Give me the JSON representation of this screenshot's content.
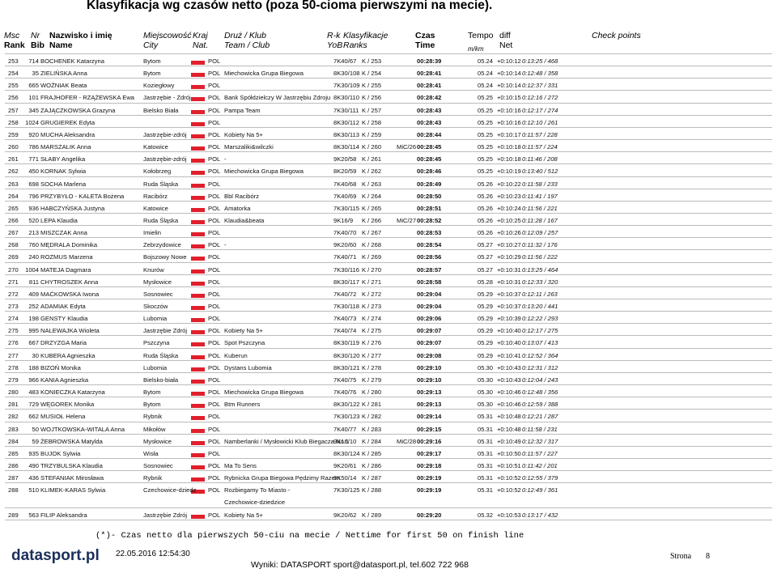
{
  "header": {
    "title": "Klasyfikacja wg czasów netto (poza 50-cioma pierwszymi na mecie).",
    "columns": [
      [
        "Msc",
        "Rank"
      ],
      [
        "Nr",
        "Bib"
      ],
      [
        "Nazwisko i imię",
        "Name"
      ],
      [
        "Miejscowość",
        "City"
      ],
      [
        "Kraj",
        "Nat."
      ],
      [
        "Druż / Klub",
        "Team / Club"
      ],
      [
        "R-k",
        "YoB"
      ],
      [
        "Klasyfikacje",
        "Ranks"
      ],
      [
        "Czas",
        "Time"
      ],
      [
        "Tempo",
        "m/km"
      ],
      [
        "diff",
        "Net"
      ],
      [
        "Check points"
      ]
    ]
  },
  "table": {
    "rows": [
      [
        "253",
        "714",
        "BOCHENEK Katarzyna",
        "Bytom",
        "POL",
        null,
        "7K40/67",
        "K / 253",
        null,
        "00:28:39",
        "05.24",
        "+0:10:12",
        "0:13:25 / 468"
      ],
      [
        "254",
        "35",
        "ZIELIŃSKA Anna",
        "Bytom",
        "POL",
        "Miechowicka Grupa Biegowa",
        "8K30/108",
        "K / 254",
        null,
        "00:28:41",
        "05.24",
        "+0:10:14",
        "0:12:48 / 358"
      ],
      [
        "255",
        "665",
        "WOŹNIAK Beata",
        "Koziegłowy",
        "POL",
        null,
        "7K30/109",
        "K / 255",
        null,
        "00:28:41",
        "05.24",
        "+0:10:14",
        "0:12:37 / 331"
      ],
      [
        "256",
        "101",
        "FRAJHOFER - RZĄŻEWSKA Ewa",
        "Jastrzębie - Zdrój",
        "POL",
        "Bank Spółdzielczy W Jastrzębiu Zdroju",
        "8K30/110",
        "K / 256",
        null,
        "00:28:42",
        "05.25",
        "+0:10:15",
        "0:12:16 / 272"
      ],
      [
        "257",
        "345",
        "ZAJĄCZKOWSKA Grazyna",
        "Bielsko Biała",
        "POL",
        "Pampa Team",
        "7K30/111",
        "K / 257",
        null,
        "00:28:43",
        "05.25",
        "+0:10:16",
        "0:12:17 / 274"
      ],
      [
        "258",
        "1024",
        "GRUGIEREK Edyta",
        null,
        "POL",
        null,
        "8K30/112",
        "K / 258",
        null,
        "00:28:43",
        "05.25",
        "+0:10:16",
        "0:12:10 / 261"
      ],
      [
        "259",
        "920",
        "MUCHA Aleksandra",
        "Jastrzębie-zdrój",
        "POL",
        "Kobiety Na 5+",
        "8K30/113",
        "K / 259",
        null,
        "00:28:44",
        "05.25",
        "+0:10:17",
        "0:11:57 / 228"
      ],
      [
        "260",
        "786",
        "MARSZALIK Anna",
        "Katowice",
        "POL",
        "Marszaliki&wilczki",
        "8K30/114",
        "K / 260",
        "MiC/26",
        "00:28:45",
        "05.25",
        "+0:10:18",
        "0:11:57 / 224"
      ],
      [
        "261",
        "771",
        "SŁABY Angelika",
        "Jastrzębie-zdrój",
        "POL",
        "-",
        "9K20/58",
        "K / 261",
        null,
        "00:28:45",
        "05.25",
        "+0:10:18",
        "0:11:46 / 208"
      ],
      [
        "262",
        "450",
        "KORNAK Sylwia",
        "Kołobrzeg",
        "POL",
        "Miechowicka Grupa Biegowa",
        "8K20/59",
        "K / 262",
        null,
        "00:28:46",
        "05.25",
        "+0:10:19",
        "0:13:40 / 512"
      ],
      [
        "263",
        "698",
        "SOCHA Marlena",
        "Ruda Śląska",
        "POL",
        null,
        "7K40/68",
        "K / 263",
        null,
        "00:28:49",
        "05.26",
        "+0:10:22",
        "0:11:58 / 233"
      ],
      [
        "264",
        "796",
        "PRZYBYŁO - KALETA Bożena",
        "Racibórz",
        "POL",
        "Bbl Racibórz",
        "7K40/69",
        "K / 264",
        null,
        "00:28:50",
        "05.26",
        "+0:10:23",
        "0:11:41 / 197"
      ],
      [
        "265",
        "936",
        "HABCZYŃSKA Justyna",
        "Katowice",
        "POL",
        "Amatorka",
        "7K30/115",
        "K / 265",
        null,
        "00:28:51",
        "05.26",
        "+0:10:24",
        "0:11:56 / 221"
      ],
      [
        "266",
        "520",
        "LEPA Klaudia",
        "Ruda Śląska",
        "POL",
        "Klaudia&beata",
        "9K16/9",
        "K / 266",
        "MiC/27",
        "00:28:52",
        "05.26",
        "+0:10:25",
        "0:11:28 / 167"
      ],
      [
        "267",
        "213",
        "MISZCZAK Anna",
        "Imielin",
        "POL",
        null,
        "7K40/70",
        "K / 267",
        null,
        "00:28:53",
        "05.26",
        "+0:10:26",
        "0:12:09 / 257"
      ],
      [
        "268",
        "760",
        "MĘDRALA Dominika",
        "Zebrzydowice",
        "POL",
        "-",
        "9K20/60",
        "K / 268",
        null,
        "00:28:54",
        "05.27",
        "+0:10:27",
        "0:11:32 / 176"
      ],
      [
        "269",
        "240",
        "ROZMUS Marzena",
        "Bojszowy Nowe",
        "POL",
        null,
        "7K40/71",
        "K / 269",
        null,
        "00:28:56",
        "05.27",
        "+0:10:29",
        "0:11:56 / 222"
      ],
      [
        "270",
        "1004",
        "MATEJA Dagmara",
        "Knurów",
        "POL",
        null,
        "7K30/116",
        "K / 270",
        null,
        "00:28:57",
        "05.27",
        "+0:10:31",
        "0:13:25 / 464"
      ],
      [
        "271",
        "811",
        "CHYTROSZEK Anna",
        "Mysłowice",
        "POL",
        null,
        "8K30/117",
        "K / 271",
        null,
        "00:28:58",
        "05.28",
        "+0:10:31",
        "0:12:33 / 320"
      ],
      [
        "272",
        "409",
        "MAĆKOWSKA Iwona",
        "Sosnowiec",
        "POL",
        null,
        "7K40/72",
        "K / 272",
        null,
        "00:29:04",
        "05.29",
        "+0:10:37",
        "0:12:11 / 263"
      ],
      [
        "273",
        "252",
        "ADAMIAK Edyta",
        "Skoczów",
        "POL",
        null,
        "7K30/118",
        "K / 273",
        null,
        "00:29:04",
        "05.29",
        "+0:10:37",
        "0:13:20 / 441"
      ],
      [
        "274",
        "198",
        "GENSTY Klaudia",
        "Lubomia",
        "POL",
        null,
        "7K40/73",
        "K / 274",
        null,
        "00:29:06",
        "05.29",
        "+0:10:39",
        "0:12:22 / 293"
      ],
      [
        "275",
        "995",
        "NALEWAJKA Wioleta",
        "Jastrzębie Zdrój",
        "POL",
        "Kobiety Na 5+",
        "7K40/74",
        "K / 275",
        null,
        "00:29:07",
        "05.29",
        "+0:10:40",
        "0:12:17 / 275"
      ],
      [
        "276",
        "667",
        "DRZYZGA Maria",
        "Pszczyna",
        "POL",
        "Spot Pszczyna",
        "8K30/119",
        "K / 276",
        null,
        "00:29:07",
        "05.29",
        "+0:10:40",
        "0:13:07 / 413"
      ],
      [
        "277",
        "30",
        "KUBERA Agnieszka",
        "Ruda Śląska",
        "POL",
        "Kuberun",
        "8K30/120",
        "K / 277",
        null,
        "00:29:08",
        "05.29",
        "+0:10:41",
        "0:12:52 / 364"
      ],
      [
        "278",
        "188",
        "BIZOŃ Monika",
        "Lubomia",
        "POL",
        "Dystans Lubomia",
        "8K30/121",
        "K / 278",
        null,
        "00:29:10",
        "05.30",
        "+0:10:43",
        "0:12:31 / 312"
      ],
      [
        "279",
        "966",
        "KANIA Agnieszka",
        "Bielsko-biała",
        "POL",
        null,
        "7K40/75",
        "K / 279",
        null,
        "00:29:10",
        "05.30",
        "+0:10:43",
        "0:12:04 / 243"
      ],
      [
        "280",
        "483",
        "KONIECZKA Katarzyna",
        "Bytom",
        "POL",
        "Miechowicka Grupa Biegowa",
        "7K40/76",
        "K / 280",
        null,
        "00:29:13",
        "05.30",
        "+0:10:46",
        "0:12:48 / 356"
      ],
      [
        "281",
        "729",
        "WĘGOREK Monika",
        "Bytom",
        "POL",
        "Btm Runners",
        "8K30/122",
        "K / 281",
        null,
        "00:29:13",
        "05.30",
        "+0:10:46",
        "0:12:59 / 388"
      ],
      [
        "282",
        "662",
        "MUSIOŁ Helena",
        "Rybnik",
        "POL",
        null,
        "7K30/123",
        "K / 282",
        null,
        "00:29:14",
        "05.31",
        "+0:10:48",
        "0:12:21 / 287"
      ],
      [
        "283",
        "50",
        "WOJTKOWSKA-WITALA Anna",
        "Mikołów",
        "POL",
        null,
        "7K40/77",
        "K / 283",
        null,
        "00:29:15",
        "05.31",
        "+0:10:48",
        "0:11:58 / 231"
      ],
      [
        "284",
        "59",
        "ŻEBROWSKA Matylda",
        "Mysłowice",
        "POL",
        "Namberlanki / Mysłowicki Klub Biegacza No.1",
        "9K16/10",
        "K / 284",
        "MiC/28",
        "00:29:16",
        "05.31",
        "+0:10:49",
        "0:12:32 / 317"
      ],
      [
        "285",
        "935",
        "BUJOK Sylwia",
        "Wisła",
        "POL",
        null,
        "8K30/124",
        "K / 285",
        null,
        "00:29:17",
        "05.31",
        "+0:10:50",
        "0:11:57 / 227"
      ],
      [
        "286",
        "490",
        "TRZYBULSKA Klaudia",
        "Sosnowiec",
        "POL",
        "Ma To Sens",
        "9K20/61",
        "K / 286",
        null,
        "00:29:18",
        "05.31",
        "+0:10:51",
        "0:11:42 / 201"
      ],
      [
        "287",
        "436",
        "STEFANIAK Mirosława",
        "Rybnik",
        "POL",
        "Rybnicka Grupa Biegowa Pędzimy Razem",
        "6K50/14",
        "K / 287",
        null,
        "00:29:19",
        "05.31",
        "+0:10:52",
        "0:12:55 / 379"
      ],
      [
        "288",
        "510",
        "KLIMEK-KARAS Sylwia",
        "Czechowice-dziedz",
        "POL",
        "Rozbiegamy To Miasto -\nCzechowice-dziedzice",
        "7K30/125",
        "K / 288",
        null,
        "00:29:19",
        "05.31",
        "+0:10:52",
        "0:12:49 / 361"
      ],
      [
        "289",
        "563",
        "FILIP Aleksandra",
        "Jastrzębie Zdrój",
        "POL",
        "Kobiety Na 5+",
        "9K20/62",
        "K / 289",
        null,
        "00:29:20",
        "05.32",
        "+0:10:53",
        "0:13:17 / 432"
      ]
    ]
  },
  "footer": {
    "note": "(*)- Czas netto dla pierwszych 50-ciu na mecie / Nettime for first 50 on finish line",
    "brand": "datasport.pl",
    "timestamp": "22.05.2016 12:54:30",
    "contact": "Wyniki: DATASPORT sport@datasport.pl, tel.602 722 968",
    "page_label": "Strona",
    "page_number": "8"
  }
}
